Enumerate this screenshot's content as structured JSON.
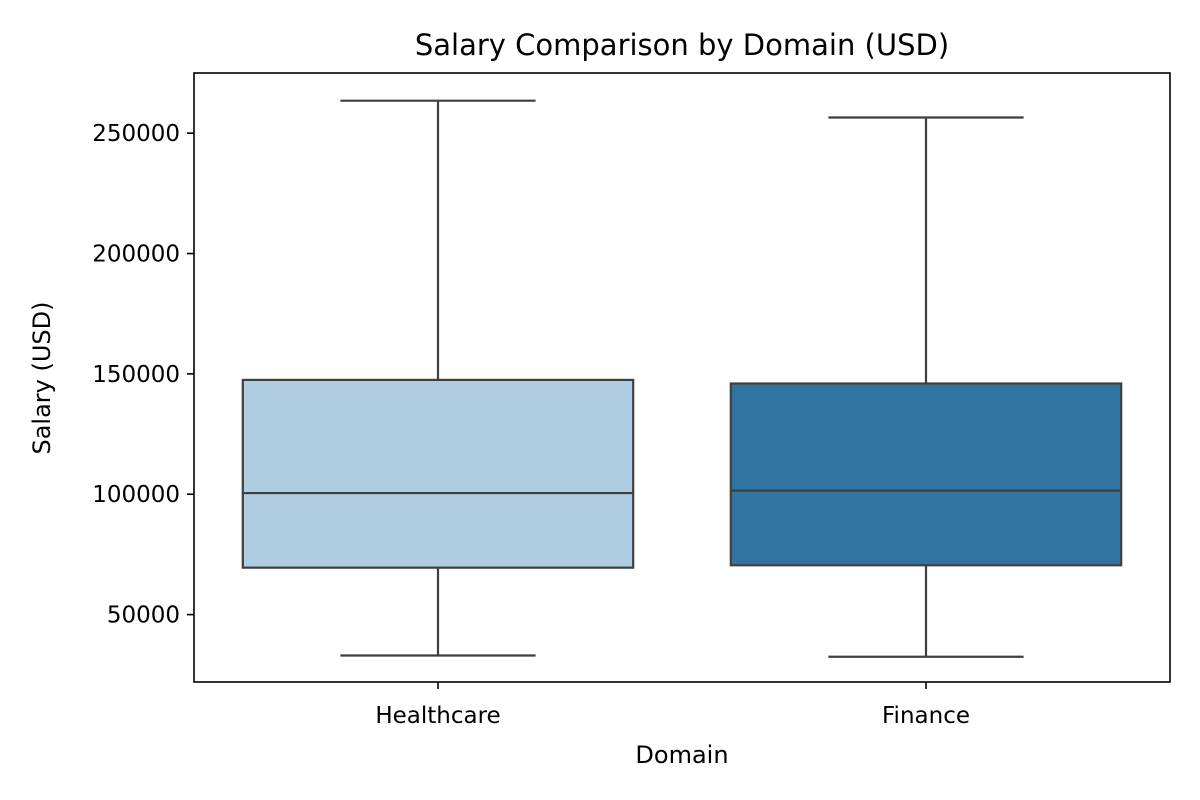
{
  "chart_data": {
    "type": "box",
    "title": "Salary Comparison by Domain (USD)",
    "xlabel": "Domain",
    "ylabel": "Salary (USD)",
    "ylim": [
      22000,
      275000
    ],
    "yticks": [
      50000,
      100000,
      150000,
      200000,
      250000
    ],
    "ytick_labels": [
      "50000",
      "100000",
      "150000",
      "200000",
      "250000"
    ],
    "grid": false,
    "legend": "none",
    "edge_color": "#3f3f3f",
    "categories": [
      "Healthcare",
      "Finance"
    ],
    "boxes": [
      {
        "category": "Healthcare",
        "color": "#aecde0",
        "whisker_low": 33000,
        "q1": 69500,
        "median": 100500,
        "q3": 147500,
        "whisker_high": 263500
      },
      {
        "category": "Finance",
        "color": "#3274a1",
        "whisker_low": 32500,
        "q1": 70500,
        "median": 101500,
        "q3": 146000,
        "whisker_high": 256500
      }
    ]
  }
}
